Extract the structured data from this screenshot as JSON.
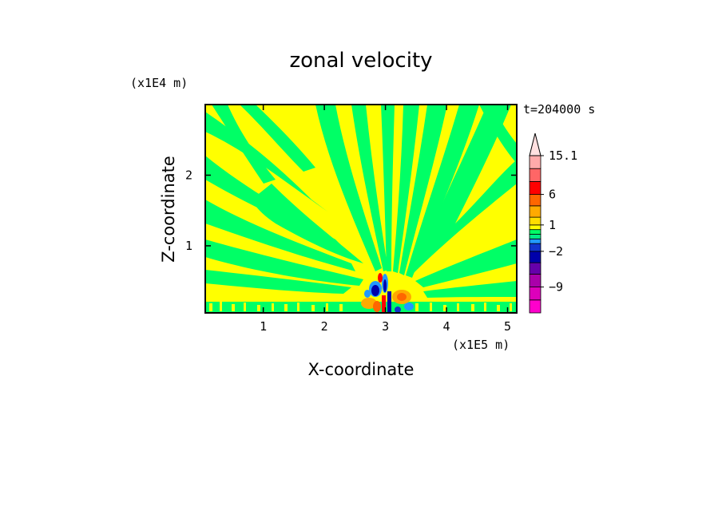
{
  "chart_data": {
    "type": "heatmap",
    "title": "zonal velocity",
    "xlabel": "X-coordinate",
    "ylabel": "Z-coordinate",
    "x_scale_label": "(x1E5 m)",
    "y_scale_label": "(x1E4 m)",
    "time_label": "t=204000 s",
    "xlim": [
      0.05,
      5.15
    ],
    "ylim": [
      0.05,
      3.0
    ],
    "x_ticks": [
      1,
      2,
      3,
      4,
      5
    ],
    "y_ticks": [
      1,
      2
    ],
    "grid": false,
    "colorbar": {
      "position": "right",
      "levels": [
        -15,
        -12,
        -9,
        -6,
        -4,
        -2,
        -1,
        -0.5,
        0,
        0.5,
        1,
        2,
        4,
        6,
        9,
        12,
        15.1
      ],
      "labels": [
        "15.1",
        "6",
        "1",
        "−2",
        "−9"
      ],
      "label_values": [
        15.1,
        6,
        1,
        -2,
        -9
      ],
      "colors": [
        "#ff00cc",
        "#dd00bb",
        "#aa00aa",
        "#6600aa",
        "#0000aa",
        "#1133cc",
        "#2299ff",
        "#00ee88",
        "#00ff66",
        "#ffff00",
        "#ffdd00",
        "#ffaa00",
        "#ff6600",
        "#ff0000",
        "#ff6666",
        "#ffaaaa"
      ],
      "top_arrow_color": "#ffe0e0"
    },
    "background_colors": {
      "positive_small": "#ffff00",
      "negative_small": "#00ff66"
    }
  }
}
